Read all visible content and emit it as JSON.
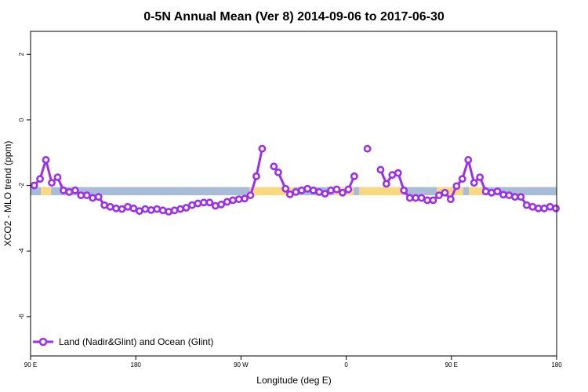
{
  "chart_data": {
    "type": "line",
    "title": "0-5N Annual Mean (Ver 8)   2014-09-06 to 2017-06-30",
    "xlabel": "Longitude (deg E)",
    "ylabel": "XCO2 - MLO trend (ppm)",
    "xlim": [
      90,
      450
    ],
    "ylim": [
      -7.2,
      2.7
    ],
    "x_ticks": [
      {
        "value": 90,
        "label": "90 E"
      },
      {
        "value": 162,
        "label": "180"
      },
      {
        "value": 234,
        "label": "90 W"
      },
      {
        "value": 306,
        "label": "0"
      },
      {
        "value": 378,
        "label": "90 E"
      },
      {
        "value": 450,
        "label": "180"
      }
    ],
    "y_ticks": [
      {
        "value": 2,
        "label": "2"
      },
      {
        "value": 0,
        "label": "0"
      },
      {
        "value": -2,
        "label": "-2"
      },
      {
        "value": -4,
        "label": "-4"
      },
      {
        "value": -6,
        "label": "-6"
      }
    ],
    "grid": false,
    "legend_position": "bottom-left",
    "surface_band": {
      "y_range": [
        -2.3,
        -2.05
      ],
      "ocean_color": "#a8bcd8",
      "land_color": "#f8d880",
      "segments": [
        {
          "x": [
            90,
            97
          ],
          "type": "ocean"
        },
        {
          "x": [
            97,
            104
          ],
          "type": "land"
        },
        {
          "x": [
            104,
            110
          ],
          "type": "ocean"
        },
        {
          "x": [
            110,
            240
          ],
          "type": "ocean"
        },
        {
          "x": [
            240,
            270
          ],
          "type": "land"
        },
        {
          "x": [
            270,
            298
          ],
          "type": "ocean"
        },
        {
          "x": [
            298,
            311
          ],
          "type": "land"
        },
        {
          "x": [
            311,
            315
          ],
          "type": "ocean"
        },
        {
          "x": [
            315,
            345
          ],
          "type": "land"
        },
        {
          "x": [
            345,
            368
          ],
          "type": "ocean"
        },
        {
          "x": [
            368,
            386
          ],
          "type": "land"
        },
        {
          "x": [
            386,
            390
          ],
          "type": "ocean"
        },
        {
          "x": [
            390,
            399
          ],
          "type": "land"
        },
        {
          "x": [
            399,
            450
          ],
          "type": "ocean"
        }
      ]
    },
    "series": [
      {
        "name": "Land (Nadir&Glint) and Ocean (Glint)",
        "color": "#9b30e8",
        "segments": [
          {
            "x": [
              92.5,
              96.5,
              100.5,
              104.5,
              108.5,
              112.5,
              116.5,
              120.5,
              124.5,
              128.5,
              132.5,
              136.5,
              140.5,
              144.5,
              148.5,
              152.5,
              156.5,
              160.5,
              164.5,
              168.5,
              172.5,
              176.5,
              180.5,
              184.5,
              188.5,
              192.5,
              196.5,
              200.5,
              204.5,
              208.5,
              212.5,
              216.5,
              220.5,
              224.5,
              228.5,
              232.5,
              236.5,
              240.5,
              244.5,
              248.5
            ],
            "y": [
              -2.0,
              -1.8,
              -1.22,
              -1.92,
              -1.75,
              -2.15,
              -2.2,
              -2.15,
              -2.3,
              -2.3,
              -2.38,
              -2.35,
              -2.6,
              -2.65,
              -2.7,
              -2.72,
              -2.65,
              -2.7,
              -2.78,
              -2.72,
              -2.75,
              -2.72,
              -2.76,
              -2.8,
              -2.76,
              -2.72,
              -2.68,
              -2.6,
              -2.55,
              -2.52,
              -2.52,
              -2.62,
              -2.58,
              -2.5,
              -2.45,
              -2.42,
              -2.4,
              -2.3,
              -1.72,
              -0.88
            ]
          },
          {
            "x": [
              256.5,
              259.5,
              264.5,
              267.5,
              271.5,
              275.5,
              279.5,
              283.5,
              287.5,
              291.5,
              295.5,
              299.5,
              303.5,
              307.5,
              311.5
            ],
            "y": [
              -1.42,
              -1.6,
              -2.1,
              -2.27,
              -2.2,
              -2.15,
              -2.1,
              -2.15,
              -2.2,
              -2.25,
              -2.15,
              -2.12,
              -2.22,
              -2.12,
              -1.72
            ]
          },
          {
            "x": [
              320.5
            ],
            "y": [
              -0.88
            ]
          },
          {
            "x": [
              329.5,
              333.5,
              337.5,
              341.5,
              345.5,
              349.5,
              353.5,
              357.5,
              361.5,
              365.5,
              369.5,
              373.5,
              377.5,
              381.5,
              385.5,
              389.5,
              393.5,
              397.5,
              401.5,
              405.5,
              409.5,
              413.5,
              417.5,
              421.5,
              425.5,
              429.5,
              433.5,
              437.5,
              441.5,
              445.5,
              449.5
            ],
            "y": [
              -1.52,
              -1.95,
              -1.68,
              -1.62,
              -2.15,
              -2.38,
              -2.38,
              -2.38,
              -2.45,
              -2.45,
              -2.3,
              -2.22,
              -2.42,
              -2.02,
              -1.8,
              -1.22,
              -1.92,
              -1.75,
              -2.18,
              -2.22,
              -2.18,
              -2.28,
              -2.3,
              -2.35,
              -2.35,
              -2.6,
              -2.65,
              -2.7,
              -2.7,
              -2.65,
              -2.7
            ]
          }
        ]
      }
    ]
  }
}
